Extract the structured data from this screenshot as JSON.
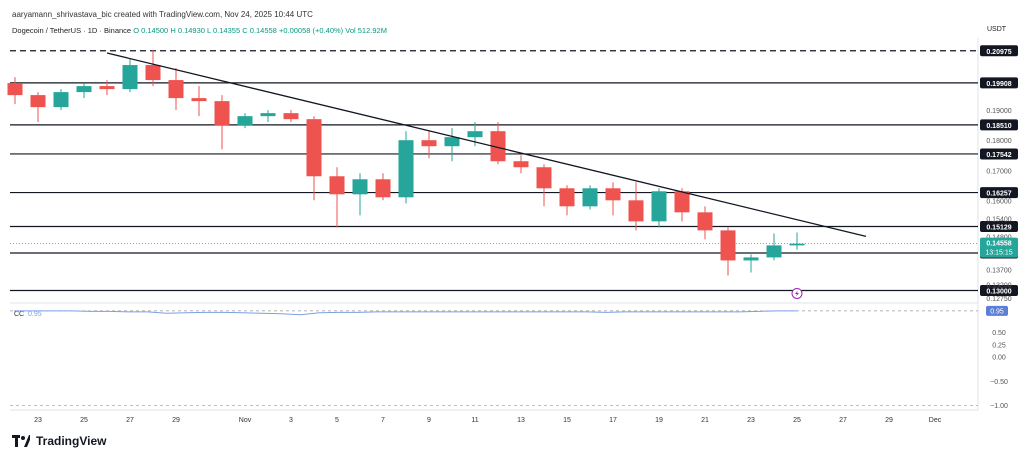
{
  "header": {
    "credit": "aaryamann_shrivastava_bic created with TradingView.com, Nov 24, 2025 10:44 UTC",
    "symbol": "Dogecoin / TetherUS · 1D · Binance",
    "open": "O 0.14500",
    "high": "H 0.14930",
    "low": "L 0.14355",
    "close": "C 0.14558",
    "change": "+0.00058 (+0.40%)",
    "volume": "Vol 512.92M"
  },
  "currency": "USDT",
  "logo": {
    "text": "TradingView",
    "icon": "tradingview-logo-icon"
  },
  "colors": {
    "up": "#26a69a",
    "down": "#ef5350",
    "wick": "#555555",
    "cc_line": "#7c9fe6",
    "last_price": "#26a69a",
    "alert": "#9c27b0"
  },
  "chart_data": [
    {
      "type": "candlestick",
      "title": "Dogecoin / TetherUS · 1D · Binance",
      "xlabel": "",
      "ylabel": "USDT",
      "ylim": [
        0.1265,
        0.214
      ],
      "xticks": [
        {
          "label": "23",
          "day": "Oct 23"
        },
        {
          "label": "25",
          "day": "Oct 25"
        },
        {
          "label": "27",
          "day": "Oct 27"
        },
        {
          "label": "29",
          "day": "Oct 29"
        },
        {
          "label": "Nov",
          "day": "Nov 1"
        },
        {
          "label": "3",
          "day": "Nov 3"
        },
        {
          "label": "5",
          "day": "Nov 5"
        },
        {
          "label": "7",
          "day": "Nov 7"
        },
        {
          "label": "9",
          "day": "Nov 9"
        },
        {
          "label": "11",
          "day": "Nov 11"
        },
        {
          "label": "13",
          "day": "Nov 13"
        },
        {
          "label": "15",
          "day": "Nov 15"
        },
        {
          "label": "17",
          "day": "Nov 17"
        },
        {
          "label": "19",
          "day": "Nov 19"
        },
        {
          "label": "21",
          "day": "Nov 21"
        },
        {
          "label": "23",
          "day": "Nov 23"
        },
        {
          "label": "25",
          "day": "Nov 25"
        },
        {
          "label": "27",
          "day": "Nov 27"
        },
        {
          "label": "29",
          "day": "Nov 29"
        },
        {
          "label": "Dec",
          "day": "Dec 1"
        }
      ],
      "yticks": [
        "0.19000",
        "0.18000",
        "0.17000",
        "0.16000",
        "0.15400",
        "0.14800",
        "0.13700",
        "0.13200",
        "0.12750"
      ],
      "candles": [
        {
          "date": "Oct 22",
          "o": 0.199,
          "h": 0.201,
          "l": 0.192,
          "c": 0.195
        },
        {
          "date": "Oct 23",
          "o": 0.195,
          "h": 0.196,
          "l": 0.186,
          "c": 0.191
        },
        {
          "date": "Oct 24",
          "o": 0.191,
          "h": 0.197,
          "l": 0.19,
          "c": 0.196
        },
        {
          "date": "Oct 25",
          "o": 0.196,
          "h": 0.199,
          "l": 0.194,
          "c": 0.198
        },
        {
          "date": "Oct 26",
          "o": 0.198,
          "h": 0.2,
          "l": 0.195,
          "c": 0.197
        },
        {
          "date": "Oct 27",
          "o": 0.197,
          "h": 0.207,
          "l": 0.196,
          "c": 0.205
        },
        {
          "date": "Oct 28",
          "o": 0.205,
          "h": 0.21,
          "l": 0.198,
          "c": 0.2
        },
        {
          "date": "Oct 29",
          "o": 0.2,
          "h": 0.204,
          "l": 0.19,
          "c": 0.194
        },
        {
          "date": "Oct 30",
          "o": 0.194,
          "h": 0.198,
          "l": 0.188,
          "c": 0.193
        },
        {
          "date": "Oct 31",
          "o": 0.193,
          "h": 0.195,
          "l": 0.177,
          "c": 0.185
        },
        {
          "date": "Nov 1",
          "o": 0.185,
          "h": 0.189,
          "l": 0.184,
          "c": 0.188
        },
        {
          "date": "Nov 2",
          "o": 0.188,
          "h": 0.19,
          "l": 0.186,
          "c": 0.189
        },
        {
          "date": "Nov 3",
          "o": 0.189,
          "h": 0.19,
          "l": 0.186,
          "c": 0.187
        },
        {
          "date": "Nov 4",
          "o": 0.187,
          "h": 0.188,
          "l": 0.16,
          "c": 0.168
        },
        {
          "date": "Nov 5",
          "o": 0.168,
          "h": 0.171,
          "l": 0.151,
          "c": 0.162
        },
        {
          "date": "Nov 6",
          "o": 0.162,
          "h": 0.169,
          "l": 0.155,
          "c": 0.167
        },
        {
          "date": "Nov 7",
          "o": 0.167,
          "h": 0.169,
          "l": 0.16,
          "c": 0.161
        },
        {
          "date": "Nov 8",
          "o": 0.161,
          "h": 0.183,
          "l": 0.159,
          "c": 0.18
        },
        {
          "date": "Nov 9",
          "o": 0.18,
          "h": 0.183,
          "l": 0.174,
          "c": 0.178
        },
        {
          "date": "Nov 10",
          "o": 0.178,
          "h": 0.184,
          "l": 0.173,
          "c": 0.181
        },
        {
          "date": "Nov 11",
          "o": 0.181,
          "h": 0.186,
          "l": 0.178,
          "c": 0.183
        },
        {
          "date": "Nov 12",
          "o": 0.183,
          "h": 0.186,
          "l": 0.172,
          "c": 0.173
        },
        {
          "date": "Nov 13",
          "o": 0.173,
          "h": 0.175,
          "l": 0.169,
          "c": 0.171
        },
        {
          "date": "Nov 14",
          "o": 0.171,
          "h": 0.172,
          "l": 0.158,
          "c": 0.164
        },
        {
          "date": "Nov 15",
          "o": 0.164,
          "h": 0.165,
          "l": 0.155,
          "c": 0.158
        },
        {
          "date": "Nov 16",
          "o": 0.158,
          "h": 0.165,
          "l": 0.157,
          "c": 0.164
        },
        {
          "date": "Nov 17",
          "o": 0.164,
          "h": 0.166,
          "l": 0.155,
          "c": 0.16
        },
        {
          "date": "Nov 18",
          "o": 0.16,
          "h": 0.166,
          "l": 0.15,
          "c": 0.153
        },
        {
          "date": "Nov 19",
          "o": 0.153,
          "h": 0.164,
          "l": 0.151,
          "c": 0.163
        },
        {
          "date": "Nov 20",
          "o": 0.163,
          "h": 0.164,
          "l": 0.153,
          "c": 0.156
        },
        {
          "date": "Nov 21",
          "o": 0.156,
          "h": 0.158,
          "l": 0.147,
          "c": 0.15
        },
        {
          "date": "Nov 22",
          "o": 0.15,
          "h": 0.151,
          "l": 0.135,
          "c": 0.14
        },
        {
          "date": "Nov 23",
          "o": 0.14,
          "h": 0.142,
          "l": 0.136,
          "c": 0.141
        },
        {
          "date": "Nov 24",
          "o": 0.141,
          "h": 0.149,
          "l": 0.14,
          "c": 0.145
        },
        {
          "date": "Nov 25",
          "o": 0.145,
          "h": 0.1493,
          "l": 0.1436,
          "c": 0.14558
        }
      ],
      "horizontal_levels": [
        {
          "value": 0.20975,
          "label": "0.20975",
          "style": "dashed"
        },
        {
          "value": 0.19908,
          "label": "0.19908",
          "style": "solid"
        },
        {
          "value": 0.1851,
          "label": "0.18510",
          "style": "solid"
        },
        {
          "value": 0.17542,
          "label": "0.17542",
          "style": "solid"
        },
        {
          "value": 0.16257,
          "label": "0.16257",
          "style": "solid"
        },
        {
          "value": 0.15129,
          "label": "0.15129",
          "style": "solid"
        },
        {
          "value": 0.14246,
          "label": "0.14246",
          "style": "solid"
        },
        {
          "value": 0.13,
          "label": "0.13000",
          "style": "solid"
        }
      ],
      "trendline": {
        "from": {
          "date": "Oct 26",
          "value": 0.209
        },
        "to": {
          "date": "Nov 28",
          "value": 0.148
        }
      },
      "last_price": {
        "value": 0.14558,
        "label": "0.14558",
        "countdown": "13:15:15"
      }
    },
    {
      "type": "line",
      "title": "",
      "indicator_label": "CC",
      "indicator_value": "0.95",
      "ylim": [
        -1.05,
        1.05
      ],
      "yticks": [
        "0.95",
        "0.50",
        "0.25",
        "0.00",
        "−0.50",
        "−1.00"
      ],
      "series": [
        {
          "name": "",
          "values": [
            0.95,
            0.95,
            0.95,
            0.95,
            0.94,
            0.94,
            0.93,
            0.93,
            0.9,
            0.91,
            0.92,
            0.92,
            0.91,
            0.9,
            0.89,
            0.87,
            0.91,
            0.92,
            0.92,
            0.93,
            0.93,
            0.93,
            0.93,
            0.93,
            0.93,
            0.93,
            0.93,
            0.93,
            0.93,
            0.93,
            0.93,
            0.92,
            0.93,
            0.93,
            0.93,
            0.93,
            0.93,
            0.93,
            0.93,
            0.94,
            0.95,
            0.95
          ]
        }
      ]
    }
  ]
}
